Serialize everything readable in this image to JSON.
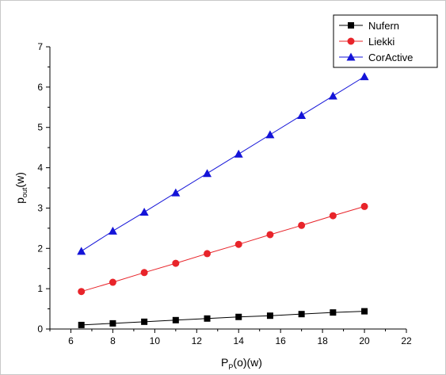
{
  "chart_data": {
    "type": "line",
    "title": "",
    "xlabel": "P",
    "xlabel_sub": "P",
    "xlabel_suffix": "(o)(w)",
    "ylabel": "p",
    "ylabel_sub": "out",
    "ylabel_suffix": "(w)",
    "xlim": [
      5,
      22
    ],
    "ylim": [
      0,
      7
    ],
    "xticks": [
      6,
      8,
      10,
      12,
      14,
      16,
      18,
      20,
      22
    ],
    "yticks": [
      0,
      1,
      2,
      3,
      4,
      5,
      6,
      7
    ],
    "grid": false,
    "legend_position": "top-right",
    "x": [
      6.5,
      8,
      9.5,
      11,
      12.5,
      14,
      15.5,
      17,
      18.5,
      20
    ],
    "series": [
      {
        "name": "Nufern",
        "color": "#000000",
        "marker": "square",
        "values": [
          0.1,
          0.14,
          0.18,
          0.22,
          0.26,
          0.3,
          0.33,
          0.37,
          0.41,
          0.44
        ]
      },
      {
        "name": "Liekki",
        "color": "#e8242a",
        "marker": "circle",
        "values": [
          0.93,
          1.16,
          1.4,
          1.63,
          1.87,
          2.1,
          2.34,
          2.57,
          2.81,
          3.04
        ]
      },
      {
        "name": "CorActive",
        "color": "#1414d8",
        "marker": "triangle",
        "values": [
          1.93,
          2.43,
          2.9,
          3.38,
          3.86,
          4.34,
          4.82,
          5.3,
          5.78,
          6.26
        ]
      }
    ]
  }
}
